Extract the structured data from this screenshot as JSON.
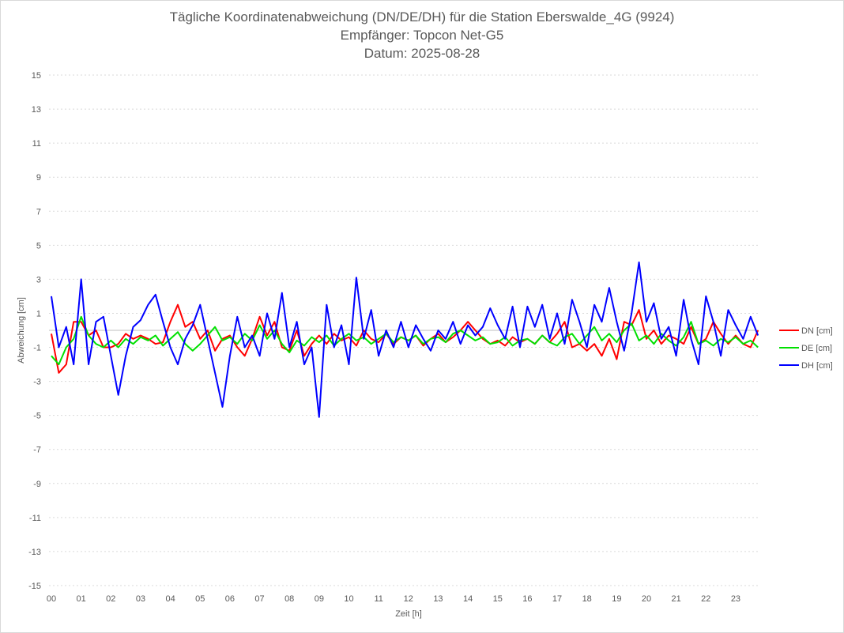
{
  "chart_data": {
    "type": "line",
    "title": "Tägliche Koordinatenabweichung (DN/DE/DH) für die Station Eberswalde_4G (9924)",
    "subtitle1": "Empfänger: Topcon Net-G5",
    "subtitle2": "Datum: 2025-08-28",
    "xlabel": "Zeit [h]",
    "ylabel": "Abweichung [cm]",
    "xlim": [
      0,
      23.75
    ],
    "ylim": [
      -15,
      15
    ],
    "x_step_h": 0.25,
    "xticks": [
      "00",
      "01",
      "02",
      "03",
      "04",
      "05",
      "06",
      "07",
      "08",
      "09",
      "10",
      "11",
      "12",
      "13",
      "14",
      "15",
      "16",
      "17",
      "18",
      "19",
      "20",
      "21",
      "22",
      "23"
    ],
    "yticks": [
      15,
      13,
      11,
      9,
      7,
      5,
      3,
      1,
      -1,
      -3,
      -5,
      -7,
      -9,
      -11,
      -13,
      -15
    ],
    "grid": true,
    "legend_position": "right",
    "series": [
      {
        "name": "DN [cm]",
        "color": "#ff0000",
        "values": [
          -0.2,
          -2.5,
          -2.0,
          0.5,
          0.5,
          -0.3,
          0.0,
          -1.0,
          -1.0,
          -0.8,
          -0.2,
          -0.5,
          -0.3,
          -0.5,
          -0.8,
          -0.7,
          0.5,
          1.5,
          0.2,
          0.5,
          -0.5,
          0.0,
          -1.2,
          -0.5,
          -0.3,
          -1.0,
          -1.5,
          -0.5,
          0.8,
          -0.3,
          0.5,
          -1.0,
          -1.2,
          0.0,
          -1.5,
          -0.8,
          -0.3,
          -0.8,
          -0.2,
          -0.6,
          -0.4,
          -0.9,
          0.0,
          -0.5,
          -0.7,
          -0.2,
          -0.8,
          -0.4,
          -0.6,
          -0.3,
          -0.9,
          -0.5,
          -0.2,
          -0.7,
          -0.4,
          0.0,
          0.5,
          0.0,
          -0.5,
          -0.8,
          -0.6,
          -0.9,
          -0.4,
          -0.7,
          -0.5,
          -0.8,
          -0.3,
          -0.7,
          -0.2,
          0.5,
          -1.0,
          -0.8,
          -1.2,
          -0.8,
          -1.5,
          -0.5,
          -1.7,
          0.5,
          0.3,
          1.2,
          -0.5,
          0.0,
          -0.8,
          -0.3,
          -0.5,
          -0.8,
          0.2,
          -0.8,
          -0.5,
          0.5,
          -0.2,
          -0.8,
          -0.3,
          -0.8,
          -1.0,
          0.0
        ]
      },
      {
        "name": "DE [cm]",
        "color": "#00e000",
        "values": [
          -1.5,
          -2.0,
          -1.0,
          -0.5,
          0.8,
          -0.3,
          -0.8,
          -1.0,
          -0.6,
          -1.0,
          -0.5,
          -0.8,
          -0.4,
          -0.6,
          -0.3,
          -0.9,
          -0.5,
          -0.1,
          -0.8,
          -1.2,
          -0.8,
          -0.3,
          0.2,
          -0.6,
          -0.4,
          -0.8,
          -0.2,
          -0.6,
          0.3,
          -0.5,
          0.0,
          -0.8,
          -1.3,
          -0.6,
          -0.9,
          -0.4,
          -0.7,
          -0.3,
          -0.9,
          -0.5,
          -0.2,
          -0.6,
          -0.4,
          -0.8,
          -0.5,
          -0.2,
          -0.7,
          -0.4,
          -0.6,
          -0.3,
          -0.8,
          -0.5,
          -0.4,
          -0.7,
          -0.2,
          0.0,
          -0.3,
          -0.6,
          -0.4,
          -0.8,
          -0.7,
          -0.4,
          -0.9,
          -0.6,
          -0.5,
          -0.8,
          -0.3,
          -0.7,
          -0.9,
          -0.4,
          -0.2,
          -0.8,
          -0.3,
          0.2,
          -0.6,
          -0.2,
          -0.7,
          0.0,
          0.4,
          -0.6,
          -0.3,
          -0.8,
          -0.2,
          -0.6,
          -0.9,
          -0.4,
          0.5,
          -0.8,
          -0.6,
          -0.9,
          -0.5,
          -0.7,
          -0.4,
          -0.8,
          -0.6,
          -1.0
        ]
      },
      {
        "name": "DH [cm]",
        "color": "#0000ff",
        "values": [
          2.0,
          -1.0,
          0.2,
          -2.0,
          3.0,
          -2.0,
          0.5,
          0.8,
          -1.5,
          -3.8,
          -1.5,
          0.2,
          0.6,
          1.5,
          2.1,
          0.5,
          -1.0,
          -2.0,
          -0.5,
          0.3,
          1.5,
          -0.5,
          -2.5,
          -4.5,
          -1.5,
          0.8,
          -1.0,
          -0.3,
          -1.5,
          1.0,
          -0.5,
          2.2,
          -1.0,
          0.5,
          -2.0,
          -1.0,
          -5.1,
          1.5,
          -1.0,
          0.3,
          -2.0,
          3.1,
          -0.5,
          1.2,
          -1.5,
          0.0,
          -1.0,
          0.5,
          -1.0,
          0.3,
          -0.5,
          -1.2,
          0.0,
          -0.5,
          0.5,
          -0.8,
          0.3,
          -0.3,
          0.2,
          1.3,
          0.3,
          -0.5,
          1.4,
          -1.0,
          1.4,
          0.2,
          1.5,
          -0.5,
          1.0,
          -0.8,
          1.8,
          0.5,
          -1.0,
          1.5,
          0.5,
          2.5,
          0.5,
          -1.2,
          1.0,
          4.0,
          0.5,
          1.6,
          -0.5,
          0.2,
          -1.5,
          1.8,
          -0.5,
          -2.0,
          2.0,
          0.5,
          -1.5,
          1.2,
          0.3,
          -0.5,
          0.8,
          -0.3
        ]
      }
    ]
  }
}
